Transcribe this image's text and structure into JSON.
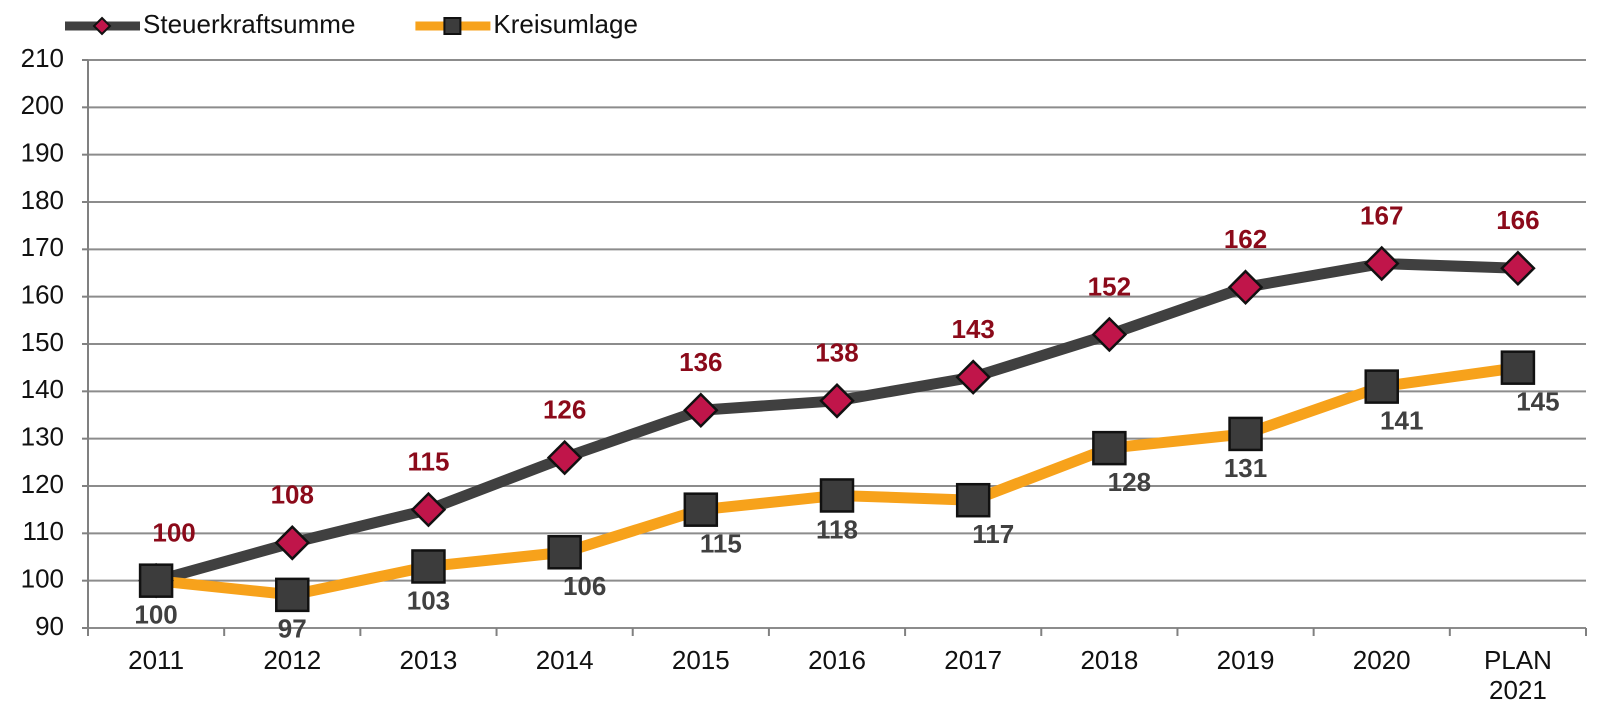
{
  "chart_data": {
    "type": "line",
    "categories": [
      "2011",
      "2012",
      "2013",
      "2014",
      "2015",
      "2016",
      "2017",
      "2018",
      "2019",
      "2020",
      "PLAN 2021"
    ],
    "series": [
      {
        "name": "Steuerkraftsumme",
        "color": "#404040",
        "marker_color": "#c0154a",
        "label_color": "#8b0a1a",
        "marker": "diamond",
        "values": [
          100,
          108,
          115,
          126,
          136,
          138,
          143,
          152,
          162,
          167,
          166
        ]
      },
      {
        "name": "Kreisumlage",
        "color": "#f7a21b",
        "marker_color": "#3c3c3c",
        "label_color": "#404040",
        "marker": "square",
        "values": [
          100,
          97,
          103,
          106,
          115,
          118,
          117,
          128,
          131,
          141,
          145
        ]
      }
    ],
    "ylim": [
      90,
      210
    ],
    "yticks": [
      90,
      100,
      110,
      120,
      130,
      140,
      150,
      160,
      170,
      180,
      190,
      200,
      210
    ],
    "grid": true,
    "legend": "top-left"
  }
}
